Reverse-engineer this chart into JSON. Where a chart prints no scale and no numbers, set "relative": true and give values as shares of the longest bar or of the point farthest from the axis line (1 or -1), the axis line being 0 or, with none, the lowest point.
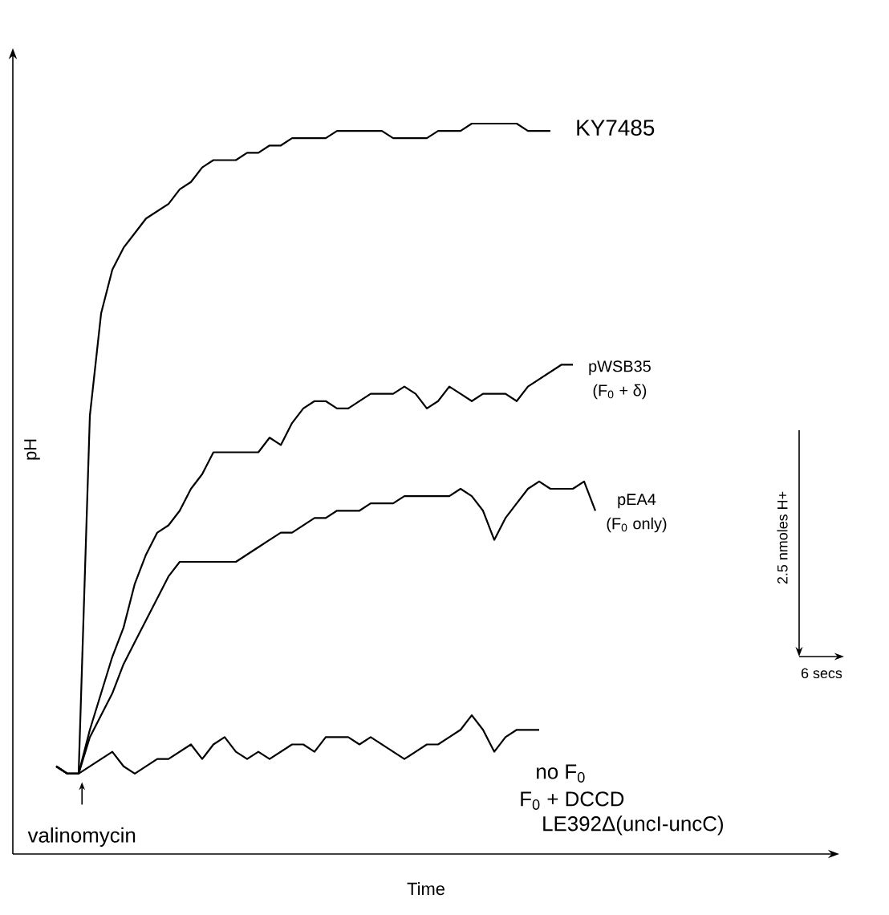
{
  "chart_data": {
    "type": "line",
    "relative": true,
    "xlabel": "Time",
    "ylabel": "pH",
    "categories": [
      null,
      null,
      null,
      null,
      null,
      null,
      null,
      null,
      null,
      null,
      null,
      null,
      null,
      null,
      null,
      null,
      null,
      null,
      null,
      null,
      null,
      null,
      null,
      null,
      null,
      null,
      null,
      null,
      null,
      null,
      null,
      null,
      null,
      null,
      null,
      null,
      null,
      null,
      null,
      null,
      null,
      null,
      null,
      null,
      null,
      null,
      null,
      null,
      null
    ],
    "series": [
      {
        "name": "KY7485",
        "color": "#000000",
        "values": [
          0.12,
          0.11,
          0.11,
          0.6,
          0.74,
          0.8,
          0.83,
          0.85,
          0.87,
          0.88,
          0.89,
          0.91,
          0.92,
          0.94,
          0.95,
          0.95,
          0.95,
          0.96,
          0.96,
          0.97,
          0.97,
          0.98,
          0.98,
          0.98,
          0.98,
          0.99,
          0.99,
          0.99,
          0.99,
          0.99,
          0.98,
          0.98,
          0.98,
          0.98,
          0.99,
          0.99,
          0.99,
          1.0,
          1.0,
          1.0,
          1.0,
          1.0,
          0.99,
          0.99,
          0.99,
          null,
          null,
          null,
          null
        ]
      },
      {
        "name": "pWSB35",
        "color": "#000000",
        "values": [
          0.12,
          0.11,
          0.11,
          0.17,
          0.22,
          0.27,
          0.31,
          0.37,
          0.41,
          0.44,
          0.45,
          0.47,
          0.5,
          0.52,
          0.55,
          0.55,
          0.55,
          0.55,
          0.55,
          0.57,
          0.56,
          0.59,
          0.61,
          0.62,
          0.62,
          0.61,
          0.61,
          0.62,
          0.63,
          0.63,
          0.63,
          0.64,
          0.63,
          0.61,
          0.62,
          0.64,
          0.63,
          0.62,
          0.63,
          0.63,
          0.63,
          0.62,
          0.64,
          0.65,
          0.66,
          0.67,
          0.67,
          null,
          null
        ]
      },
      {
        "name": "pEA4",
        "color": "#000000",
        "values": [
          0.12,
          0.11,
          0.11,
          0.16,
          0.19,
          0.22,
          0.26,
          0.29,
          0.32,
          0.35,
          0.38,
          0.4,
          0.4,
          0.4,
          0.4,
          0.4,
          0.4,
          0.41,
          0.42,
          0.43,
          0.44,
          0.44,
          0.45,
          0.46,
          0.46,
          0.47,
          0.47,
          0.47,
          0.48,
          0.48,
          0.48,
          0.49,
          0.49,
          0.49,
          0.49,
          0.49,
          0.5,
          0.49,
          0.47,
          0.43,
          0.46,
          0.48,
          0.5,
          0.51,
          0.5,
          0.5,
          0.5,
          0.51,
          0.47
        ]
      },
      {
        "name": "LE392Δ(uncI-uncC)",
        "color": "#000000",
        "values": [
          0.12,
          0.11,
          0.11,
          0.12,
          0.13,
          0.14,
          0.12,
          0.11,
          0.12,
          0.13,
          0.13,
          0.14,
          0.15,
          0.13,
          0.15,
          0.16,
          0.14,
          0.13,
          0.14,
          0.13,
          0.14,
          0.15,
          0.15,
          0.14,
          0.16,
          0.16,
          0.16,
          0.15,
          0.16,
          0.15,
          0.14,
          0.13,
          0.14,
          0.15,
          0.15,
          0.16,
          0.17,
          0.19,
          0.17,
          0.14,
          0.16,
          0.17,
          0.17,
          0.17,
          null,
          null,
          null,
          null,
          null
        ]
      }
    ],
    "annotations": [
      "(F$_{0}$ + δ)",
      "(F$_{0}$ only)",
      "no F$_{0}$",
      "F$_{0}$ + DCCD",
      "valinomycin",
      "2.5 nmoles H+",
      "6 secs"
    ]
  }
}
